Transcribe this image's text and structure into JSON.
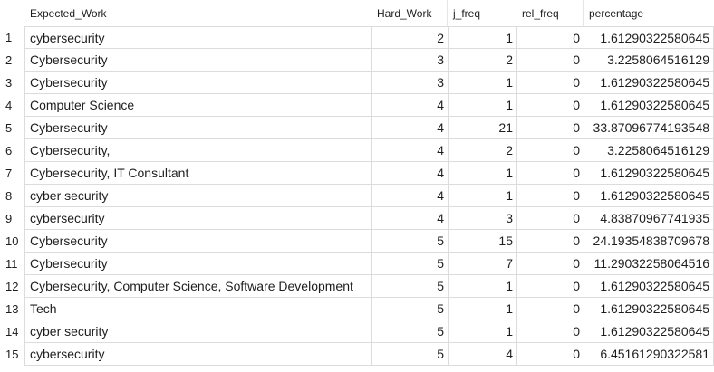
{
  "columns": [
    "Expected_Work",
    "Hard_Work",
    "j_freq",
    "rel_freq",
    "percentage"
  ],
  "rows": [
    {
      "n": "1",
      "work": "cybersecurity",
      "hard": "2",
      "jf": "1",
      "rf": "0",
      "pct": "1.61290322580645"
    },
    {
      "n": "2",
      "work": "Cybersecurity",
      "hard": "3",
      "jf": "2",
      "rf": "0",
      "pct": "3.2258064516129"
    },
    {
      "n": "3",
      "work": "Cybersecurity",
      "hard": "3",
      "jf": "1",
      "rf": "0",
      "pct": "1.61290322580645"
    },
    {
      "n": "4",
      "work": "Computer Science",
      "hard": "4",
      "jf": "1",
      "rf": "0",
      "pct": "1.61290322580645"
    },
    {
      "n": "5",
      "work": "Cybersecurity",
      "hard": "4",
      "jf": "21",
      "rf": "0",
      "pct": "33.87096774193548"
    },
    {
      "n": "6",
      "work": "Cybersecurity,",
      "hard": "4",
      "jf": "2",
      "rf": "0",
      "pct": "3.2258064516129"
    },
    {
      "n": "7",
      "work": "Cybersecurity, IT Consultant",
      "hard": "4",
      "jf": "1",
      "rf": "0",
      "pct": "1.61290322580645"
    },
    {
      "n": "8",
      "work": "cyber security",
      "hard": "4",
      "jf": "1",
      "rf": "0",
      "pct": "1.61290322580645"
    },
    {
      "n": "9",
      "work": "cybersecurity",
      "hard": "4",
      "jf": "3",
      "rf": "0",
      "pct": "4.83870967741935"
    },
    {
      "n": "10",
      "work": "Cybersecurity",
      "hard": "5",
      "jf": "15",
      "rf": "0",
      "pct": "24.19354838709678"
    },
    {
      "n": "11",
      "work": "Cybersecurity",
      "hard": "5",
      "jf": "7",
      "rf": "0",
      "pct": "11.29032258064516"
    },
    {
      "n": "12",
      "work": "Cybersecurity, Computer Science, Software Development",
      "hard": "5",
      "jf": "1",
      "rf": "0",
      "pct": "1.61290322580645"
    },
    {
      "n": "13",
      "work": "Tech",
      "hard": "5",
      "jf": "1",
      "rf": "0",
      "pct": "1.61290322580645"
    },
    {
      "n": "14",
      "work": "cyber security",
      "hard": "5",
      "jf": "1",
      "rf": "0",
      "pct": "1.61290322580645"
    },
    {
      "n": "15",
      "work": "cybersecurity",
      "hard": "5",
      "jf": "4",
      "rf": "0",
      "pct": "6.45161290322581"
    }
  ]
}
